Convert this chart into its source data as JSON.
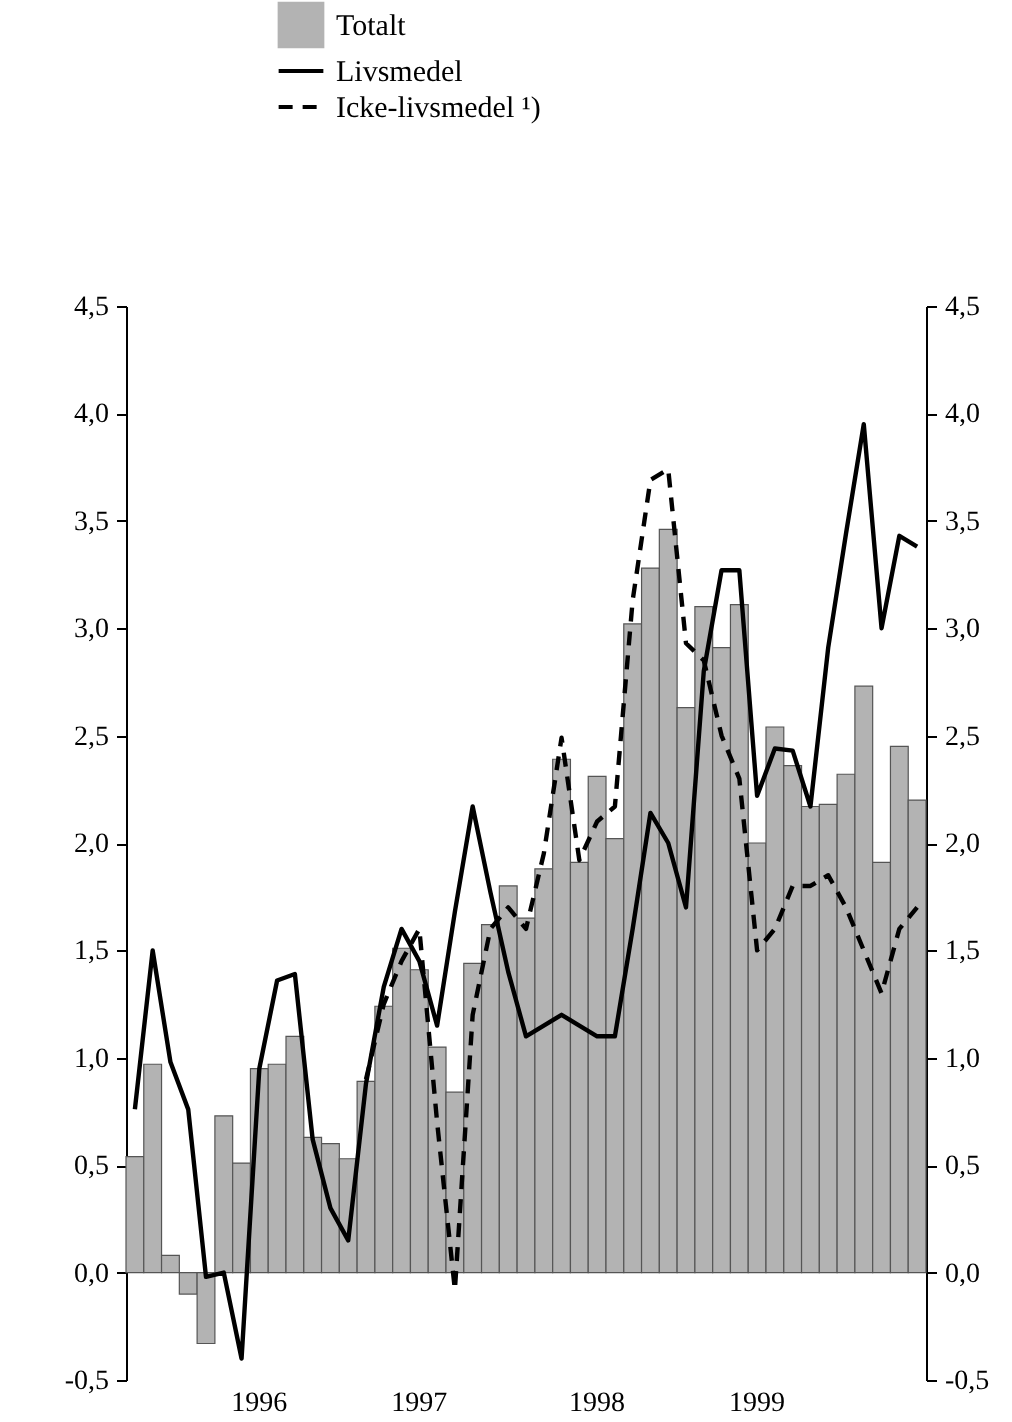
{
  "chart_data": {
    "type": "bar",
    "legend": "top",
    "grid": false,
    "categories": [
      null,
      null,
      null,
      null,
      null,
      null,
      null,
      "1996",
      null,
      null,
      null,
      null,
      null,
      null,
      null,
      null,
      "1997",
      null,
      null,
      null,
      null,
      null,
      null,
      null,
      null,
      null,
      "1998",
      null,
      null,
      null,
      null,
      null,
      null,
      null,
      null,
      "1999",
      null,
      null,
      null,
      null,
      null,
      null,
      null,
      null,
      null
    ],
    "series": [
      {
        "name": "Totalt",
        "color": "#b3b3b3",
        "values": [
          0.54,
          0.97,
          0.08,
          -0.1,
          -0.33,
          0.73,
          0.51,
          0.95,
          0.97,
          1.1,
          0.63,
          0.6,
          0.53,
          0.89,
          1.24,
          1.51,
          1.41,
          1.05,
          0.84,
          1.44,
          1.62,
          1.8,
          1.65,
          1.88,
          2.39,
          1.91,
          2.31,
          2.02,
          3.02,
          3.28,
          3.46,
          2.63,
          3.1,
          2.91,
          3.11,
          2.0,
          2.54,
          2.36,
          2.17,
          2.18,
          2.32,
          2.73,
          1.91,
          2.45,
          2.2
        ]
      },
      {
        "name": "Livsmedel",
        "type": "line",
        "color": "#000000",
        "line_style": "solid",
        "values": [
          0.76,
          1.5,
          0.98,
          0.76,
          -0.02,
          0.0,
          -0.4,
          0.95,
          1.36,
          1.39,
          0.62,
          0.3,
          0.15,
          0.88,
          1.33,
          1.6,
          1.45,
          1.15,
          1.68,
          2.17,
          1.77,
          1.4,
          1.1,
          1.15,
          1.2,
          1.15,
          1.1,
          1.1,
          1.6,
          2.14,
          2.0,
          1.7,
          2.8,
          3.27,
          3.27,
          2.22,
          2.44,
          2.43,
          2.17,
          2.91,
          3.44,
          3.95,
          3.0,
          3.43,
          3.38
        ]
      },
      {
        "name": "Icke-livsmedel ¹)",
        "type": "line",
        "color": "#000000",
        "line_style": "dashed",
        "values": [
          null,
          null,
          null,
          null,
          null,
          null,
          null,
          null,
          null,
          null,
          null,
          null,
          null,
          0.9,
          1.25,
          1.45,
          1.6,
          0.7,
          -0.08,
          1.2,
          1.6,
          1.7,
          1.6,
          1.95,
          2.49,
          1.92,
          2.1,
          2.17,
          3.13,
          3.69,
          3.74,
          2.93,
          2.85,
          2.5,
          2.3,
          1.5,
          1.6,
          1.8,
          1.8,
          1.85,
          1.7,
          1.5,
          1.3,
          1.6,
          1.7
        ]
      }
    ],
    "ylim": [
      -0.5,
      4.5
    ],
    "yticks": [
      {
        "value": -0.5,
        "label": "-0,5"
      },
      {
        "value": 0,
        "label": "0,0"
      },
      {
        "value": 0.5,
        "label": "0,5"
      },
      {
        "value": 1,
        "label": "1,0"
      },
      {
        "value": 1.5,
        "label": "1,5"
      },
      {
        "value": 2,
        "label": "2,0"
      },
      {
        "value": 2.5,
        "label": "2,5"
      },
      {
        "value": 3,
        "label": "3,0"
      },
      {
        "value": 3.5,
        "label": "3,5"
      },
      {
        "value": 4,
        "label": "4,0"
      },
      {
        "value": 4.5,
        "label": "4,5"
      }
    ],
    "y2lim": [
      -0.5,
      4.5
    ],
    "y2ticks": [
      {
        "value": -0.5,
        "label": "-0,5"
      },
      {
        "value": 0,
        "label": "0,0"
      },
      {
        "value": 0.5,
        "label": "0,5"
      },
      {
        "value": 1,
        "label": "1,0"
      },
      {
        "value": 1.5,
        "label": "1,5"
      },
      {
        "value": 2,
        "label": "2,0"
      },
      {
        "value": 2.5,
        "label": "2,5"
      },
      {
        "value": 3,
        "label": "3,0"
      },
      {
        "value": 3.5,
        "label": "3,5"
      },
      {
        "value": 4,
        "label": "4,0"
      },
      {
        "value": 4.5,
        "label": "4,5"
      }
    ]
  }
}
